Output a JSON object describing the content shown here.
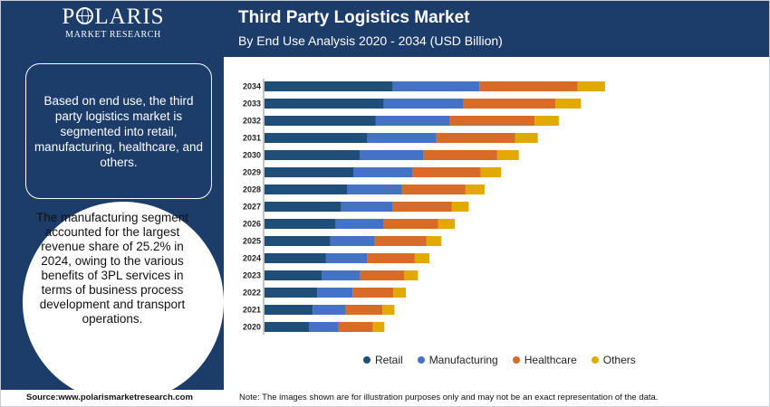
{
  "brand": {
    "name_before": "P",
    "name_after": "LARIS",
    "tagline": "MARKET RESEARCH"
  },
  "header": {
    "title": "Third Party Logistics Market",
    "subtitle": "By End Use Analysis 2020 - 2034 (USD Billion)"
  },
  "left_panel": {
    "info_text": "Based on end use, the third party logistics market is segmented into retail, manufacturing, healthcare, and others.",
    "highlight_text": "The manufacturing segment accounted for the largest revenue share of 25.2% in 2024, owing to the various benefits of 3PL services in terms of business process development and transport operations."
  },
  "footer": {
    "source": "Source:www.polarismarketresearch.com",
    "note": "Note: The images shown are for illustration purposes only and may not be an exact representation of the data."
  },
  "chart_data": {
    "type": "bar",
    "orientation": "horizontal",
    "stacked": true,
    "title": "Third Party Logistics Market",
    "subtitle": "By End Use Analysis 2020 - 2034 (USD Billion)",
    "categories": [
      "2034",
      "2033",
      "2032",
      "2031",
      "2030",
      "2029",
      "2028",
      "2027",
      "2026",
      "2025",
      "2024",
      "2023",
      "2022",
      "2021",
      "2020"
    ],
    "series": [
      {
        "name": "Retail",
        "color": "#1f4e79",
        "values": [
          202,
          188,
          175,
          162,
          150,
          140,
          130,
          121,
          112,
          104,
          97,
          90,
          83,
          76,
          70
        ]
      },
      {
        "name": "Manufacturing",
        "color": "#4472c4",
        "values": [
          137,
          126,
          117,
          109,
          101,
          94,
          87,
          81,
          76,
          70,
          65,
          61,
          56,
          52,
          47
        ]
      },
      {
        "name": "Healthcare",
        "color": "#d86b27",
        "values": [
          155,
          145,
          134,
          124,
          116,
          107,
          100,
          93,
          86,
          81,
          75,
          69,
          64,
          58,
          54
        ]
      },
      {
        "name": "Others",
        "color": "#e2aa00",
        "values": [
          43,
          40,
          38,
          36,
          34,
          32,
          30,
          27,
          26,
          24,
          23,
          22,
          20,
          19,
          18
        ]
      }
    ],
    "xlabel": "",
    "ylabel": "",
    "legend_position": "bottom",
    "grid": false
  }
}
